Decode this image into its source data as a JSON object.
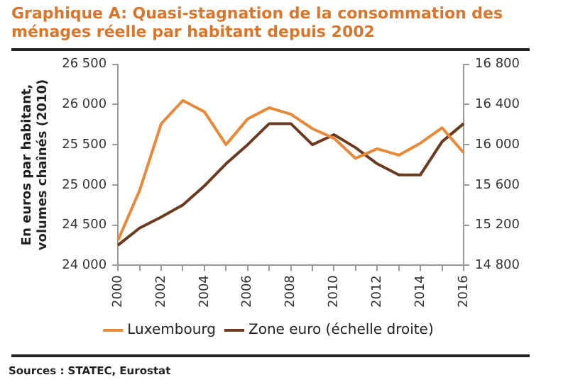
{
  "chart_data": {
    "type": "line",
    "title": "Graphique A: Quasi-stagnation de la consommation des ménages réelle par habitant depuis 2002",
    "ylabel": "En euros par habitant, volumes chaînés (2010)",
    "categories": [
      "2000",
      null,
      "2002",
      null,
      "2004",
      null,
      "2006",
      null,
      "2008",
      null,
      "2010",
      null,
      "2012",
      null,
      "2014",
      null,
      "2016"
    ],
    "series": [
      {
        "name": "Luxembourg",
        "color": "#e8893a",
        "values": [
          24310,
          24930,
          25760,
          26050,
          25910,
          25500,
          25820,
          25960,
          25880,
          25700,
          25580,
          25330,
          25450,
          25370,
          25520,
          25710,
          25400
        ]
      },
      {
        "name": "Zone euro (échelle droite)",
        "color": "#6b3a1f",
        "axis": "y2",
        "values": [
          15000,
          15170,
          15280,
          15400,
          15590,
          15810,
          16000,
          16210,
          16210,
          16000,
          16100,
          15970,
          15810,
          15700,
          15700,
          16030,
          16210
        ]
      }
    ],
    "ylim": [
      24000,
      26500
    ],
    "yticks": [
      {
        "value": 24000,
        "label": "24 000"
      },
      {
        "value": 24500,
        "label": "24 500"
      },
      {
        "value": 25000,
        "label": "25 000"
      },
      {
        "value": 25500,
        "label": "25 500"
      },
      {
        "value": 26000,
        "label": "26 000"
      },
      {
        "value": 26500,
        "label": "26 500"
      }
    ],
    "y2lim": [
      14800,
      16800
    ],
    "y2ticks": [
      {
        "value": 14800,
        "label": "14 800"
      },
      {
        "value": 15200,
        "label": "15 200"
      },
      {
        "value": 15600,
        "label": "15 600"
      },
      {
        "value": 16000,
        "label": "16 000"
      },
      {
        "value": 16400,
        "label": "16 400"
      },
      {
        "value": 16800,
        "label": "16 800"
      }
    ],
    "grid": false,
    "legend": "bottom",
    "marker": "none",
    "line_style": "solid",
    "annotations": [
      "Sources : STATEC, Eurostat"
    ]
  }
}
